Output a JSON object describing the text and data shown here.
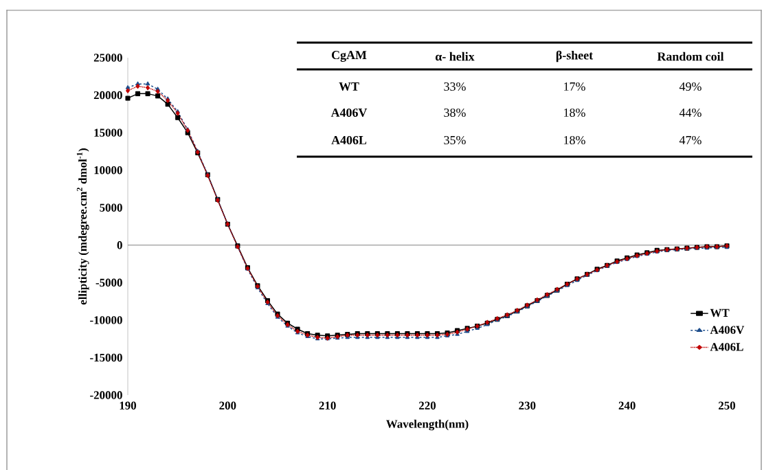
{
  "chart_data": {
    "type": "line",
    "xlabel": "Wavelength(nm)",
    "ylabel": "ellipticity (mdegree.cm$^{2}$ dmol$^{-1}$)",
    "x": [
      190,
      191,
      192,
      193,
      194,
      195,
      196,
      197,
      198,
      199,
      200,
      201,
      202,
      203,
      204,
      205,
      206,
      207,
      208,
      209,
      210,
      211,
      212,
      213,
      214,
      215,
      216,
      217,
      218,
      219,
      220,
      221,
      222,
      223,
      224,
      225,
      226,
      227,
      228,
      229,
      230,
      231,
      232,
      233,
      234,
      235,
      236,
      237,
      238,
      239,
      240,
      241,
      242,
      243,
      244,
      245,
      246,
      247,
      248,
      249,
      250
    ],
    "series": [
      {
        "name": "WT",
        "color": "#000000",
        "marker": "square",
        "line_style": "solid",
        "values": [
          19600,
          20200,
          20200,
          19900,
          18800,
          17000,
          15000,
          12300,
          9400,
          6100,
          2800,
          -100,
          -3000,
          -5400,
          -7400,
          -9200,
          -10400,
          -11200,
          -11800,
          -12000,
          -12100,
          -12000,
          -11900,
          -11800,
          -11800,
          -11800,
          -11800,
          -11800,
          -11800,
          -11800,
          -11800,
          -11800,
          -11700,
          -11400,
          -11100,
          -10800,
          -10400,
          -9900,
          -9400,
          -8800,
          -8100,
          -7400,
          -6700,
          -6000,
          -5200,
          -4500,
          -3900,
          -3200,
          -2700,
          -2100,
          -1700,
          -1300,
          -1000,
          -700,
          -600,
          -500,
          -400,
          -300,
          -200,
          -200,
          -100
        ]
      },
      {
        "name": "A406V",
        "color": "#1f4e8c",
        "marker": "triangle",
        "line_style": "dashed",
        "values": [
          21000,
          21500,
          21500,
          20800,
          19500,
          17800,
          15400,
          12500,
          9400,
          6100,
          2800,
          -200,
          -3200,
          -5700,
          -7800,
          -9600,
          -10800,
          -11700,
          -12200,
          -12500,
          -12500,
          -12400,
          -12300,
          -12300,
          -12300,
          -12300,
          -12300,
          -12300,
          -12300,
          -12300,
          -12300,
          -12300,
          -12100,
          -11900,
          -11500,
          -11100,
          -10600,
          -10000,
          -9500,
          -8900,
          -8200,
          -7500,
          -6800,
          -6100,
          -5400,
          -4700,
          -4000,
          -3400,
          -2800,
          -2300,
          -1900,
          -1500,
          -1200,
          -900,
          -700,
          -600,
          -500,
          -400,
          -400,
          -300,
          -300
        ]
      },
      {
        "name": "A406L",
        "color": "#c00000",
        "marker": "diamond",
        "line_style": "dotted",
        "values": [
          20600,
          21200,
          21000,
          20500,
          19300,
          17600,
          15300,
          12400,
          9300,
          6000,
          2800,
          -200,
          -3100,
          -5500,
          -7600,
          -9400,
          -10600,
          -11500,
          -12000,
          -12300,
          -12400,
          -12200,
          -12000,
          -12000,
          -12000,
          -12000,
          -12000,
          -12000,
          -12000,
          -12000,
          -12000,
          -12000,
          -11900,
          -11600,
          -11200,
          -10800,
          -10300,
          -9800,
          -9300,
          -8700,
          -8000,
          -7300,
          -6600,
          -5900,
          -5200,
          -4500,
          -3900,
          -3300,
          -2700,
          -2200,
          -1800,
          -1400,
          -1100,
          -800,
          -600,
          -500,
          -400,
          -300,
          -200,
          -200,
          -100
        ]
      }
    ],
    "xlim": [
      190,
      250
    ],
    "xticks": [
      190,
      200,
      210,
      220,
      230,
      240,
      250
    ],
    "ylim": [
      -20000,
      25000
    ],
    "yticks": [
      -20000,
      -15000,
      -10000,
      -5000,
      0,
      5000,
      10000,
      15000,
      20000,
      25000
    ],
    "grid": false,
    "legend": "right",
    "ref_lines": [
      {
        "axis": "y",
        "value": 0,
        "color": "#808080"
      }
    ],
    "annotations": [
      "CgAM",
      "α- helix",
      "β-sheet",
      "Random coil",
      "WT",
      "33%",
      "17%",
      "49%",
      "A406V",
      "38%",
      "18%",
      "44%",
      "A406L",
      "35%",
      "18%",
      "47%"
    ]
  }
}
